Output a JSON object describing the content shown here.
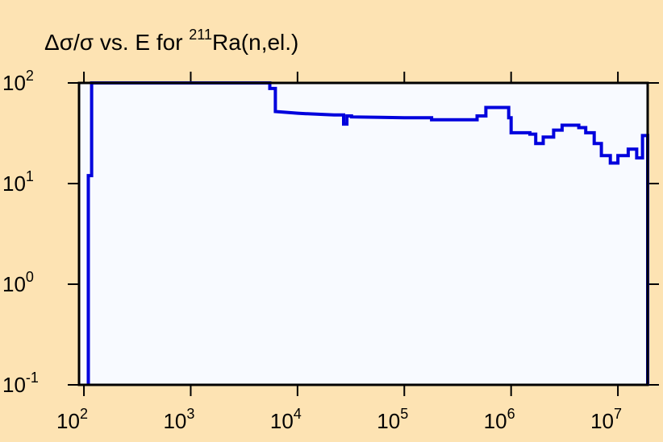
{
  "chart_data": {
    "type": "line",
    "step": true,
    "title": {
      "prefix": "Δσ/σ vs. E for ",
      "superscript": "211",
      "suffix": "Ra(n,el.)"
    },
    "xlabel": "",
    "ylabel": "",
    "x_scale": "log",
    "y_scale": "log",
    "xlim": [
      90,
      19000000
    ],
    "ylim": [
      0.1,
      100
    ],
    "x_ticks": [
      {
        "base": "10",
        "exp": "2",
        "value": 100
      },
      {
        "base": "10",
        "exp": "3",
        "value": 1000
      },
      {
        "base": "10",
        "exp": "4",
        "value": 10000
      },
      {
        "base": "10",
        "exp": "5",
        "value": 100000
      },
      {
        "base": "10",
        "exp": "6",
        "value": 1000000
      },
      {
        "base": "10",
        "exp": "7",
        "value": 10000000
      }
    ],
    "y_ticks": [
      {
        "base": "10",
        "exp": "2",
        "value": 100
      },
      {
        "base": "10",
        "exp": "1",
        "value": 10
      },
      {
        "base": "10",
        "exp": "0",
        "value": 1
      },
      {
        "base": "10",
        "exp": "-1",
        "value": 0.1
      }
    ],
    "grid": false,
    "line_color": "#0000dd",
    "plot_bg": "#f8faff",
    "page_bg": "#fde3b3",
    "series": [
      {
        "x": [
          110,
          110,
          118,
          118,
          130,
          130,
          5500,
          5500,
          6200,
          6200,
          8000,
          10000,
          12000,
          15000,
          18000,
          22000,
          27000,
          27000,
          29000,
          29000,
          32000,
          32000,
          60000,
          100000,
          180000,
          180000,
          210000,
          210000,
          400000,
          400000,
          480000,
          480000,
          580000,
          580000,
          620000,
          620000,
          950000,
          950000,
          1000000,
          1000000,
          1500000,
          1500000,
          1700000,
          1700000,
          2000000,
          2000000,
          2500000,
          2500000,
          3000000,
          3000000,
          3300000,
          3300000,
          4300000,
          4300000,
          5000000,
          5000000,
          6000000,
          6000000,
          7000000,
          7000000,
          8500000,
          8500000,
          10000000,
          10000000,
          12500000,
          12500000,
          15000000,
          15000000,
          17000000,
          17000000,
          19000000,
          19000000
        ],
        "y": [
          0.1,
          12,
          12,
          100,
          100,
          100,
          100,
          88,
          88,
          52,
          51,
          50,
          49.5,
          49,
          48.5,
          48,
          48,
          39,
          39,
          47,
          47,
          46,
          45.5,
          45,
          45,
          43,
          43,
          43,
          43,
          43,
          43,
          47,
          47,
          57,
          57,
          57,
          57,
          45,
          45,
          32,
          32,
          31,
          31,
          25,
          25,
          29,
          29,
          34,
          34,
          38,
          38,
          38,
          38,
          36,
          36,
          32,
          32,
          25,
          25,
          19,
          19,
          16,
          16,
          19,
          19,
          22,
          22,
          18,
          18,
          30,
          30,
          0.1
        ]
      }
    ]
  }
}
